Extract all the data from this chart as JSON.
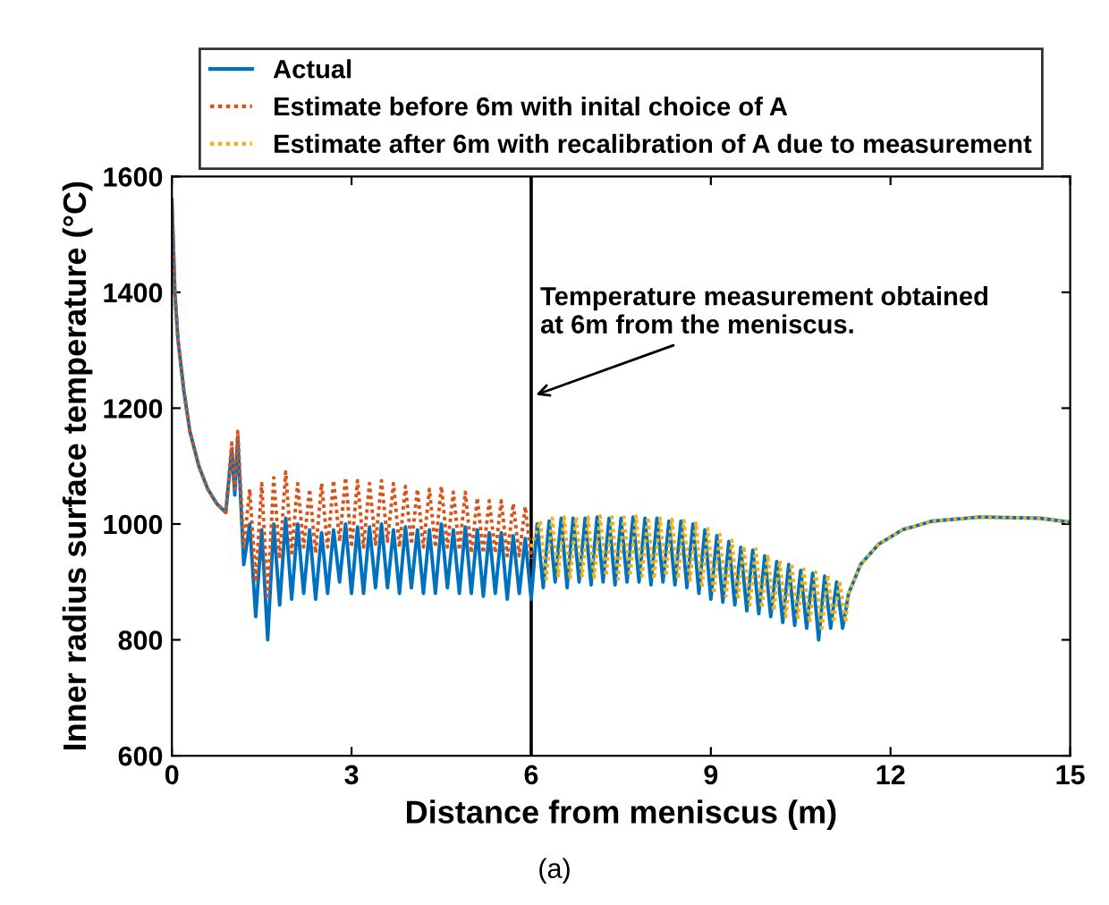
{
  "chart_data": {
    "type": "line",
    "xlabel": "Distance from meniscus (m)",
    "ylabel": "Inner radius surface temperature (°C)",
    "xlim": [
      0,
      15
    ],
    "ylim": [
      600,
      1600
    ],
    "xticks": [
      0,
      3,
      6,
      9,
      12,
      15
    ],
    "yticks": [
      600,
      800,
      1000,
      1200,
      1400,
      1600
    ],
    "legend": "top",
    "grid": false,
    "series": [
      {
        "name": "Actual",
        "color": "#0072bd",
        "line_style": "solid",
        "x": [
          0,
          0.05,
          0.1,
          0.2,
          0.3,
          0.45,
          0.6,
          0.75,
          0.9,
          1.0,
          1.05,
          1.1,
          1.2,
          1.3,
          1.4,
          1.5,
          1.6,
          1.7,
          1.8,
          1.9,
          2.0,
          2.1,
          2.2,
          2.3,
          2.4,
          2.5,
          2.6,
          2.7,
          2.8,
          2.9,
          3.0,
          3.1,
          3.2,
          3.3,
          3.4,
          3.5,
          3.6,
          3.7,
          3.8,
          3.9,
          4.0,
          4.1,
          4.2,
          4.3,
          4.4,
          4.5,
          4.6,
          4.7,
          4.8,
          4.9,
          5.0,
          5.1,
          5.2,
          5.3,
          5.4,
          5.5,
          5.6,
          5.7,
          5.8,
          5.9,
          6.0,
          6.1,
          6.2,
          6.3,
          6.4,
          6.5,
          6.6,
          6.7,
          6.8,
          6.9,
          7.0,
          7.1,
          7.2,
          7.3,
          7.4,
          7.5,
          7.6,
          7.7,
          7.8,
          7.9,
          8.0,
          8.1,
          8.2,
          8.3,
          8.4,
          8.5,
          8.6,
          8.7,
          8.8,
          8.9,
          9.0,
          9.1,
          9.2,
          9.3,
          9.4,
          9.5,
          9.6,
          9.7,
          9.8,
          9.9,
          10.0,
          10.1,
          10.2,
          10.3,
          10.4,
          10.5,
          10.6,
          10.7,
          10.8,
          10.9,
          11.0,
          11.1,
          11.2,
          11.3,
          11.5,
          11.8,
          12.2,
          12.7,
          13.5,
          14.5,
          15
        ],
        "values": [
          1560,
          1400,
          1320,
          1230,
          1160,
          1100,
          1060,
          1035,
          1020,
          1130,
          1050,
          1150,
          930,
          1000,
          840,
          990,
          800,
          1000,
          860,
          1010,
          870,
          1000,
          880,
          990,
          870,
          985,
          880,
          990,
          900,
          1000,
          880,
          995,
          880,
          995,
          890,
          1000,
          890,
          990,
          880,
          995,
          890,
          990,
          880,
          990,
          880,
          1000,
          890,
          990,
          880,
          995,
          880,
          990,
          875,
          985,
          880,
          985,
          870,
          980,
          880,
          975,
          870,
          1000,
          890,
          1005,
          900,
          1010,
          890,
          1010,
          900,
          1010,
          895,
          1012,
          900,
          1010,
          895,
          1010,
          900,
          1012,
          900,
          1010,
          895,
          1010,
          900,
          1005,
          895,
          1005,
          890,
          1000,
          880,
          990,
          870,
          980,
          865,
          970,
          860,
          960,
          850,
          955,
          845,
          945,
          840,
          935,
          830,
          930,
          825,
          920,
          820,
          915,
          800,
          910,
          820,
          900,
          820,
          880,
          930,
          965,
          990,
          1005,
          1012,
          1010,
          1003
        ]
      },
      {
        "name": "Estimate before 6m with inital choice of A",
        "color": "#d95319",
        "line_style": "dotted",
        "x": [
          0,
          0.05,
          0.1,
          0.2,
          0.3,
          0.45,
          0.6,
          0.75,
          0.9,
          1.0,
          1.05,
          1.1,
          1.2,
          1.3,
          1.4,
          1.5,
          1.6,
          1.7,
          1.8,
          1.9,
          2.0,
          2.1,
          2.2,
          2.3,
          2.4,
          2.5,
          2.6,
          2.7,
          2.8,
          2.9,
          3.0,
          3.1,
          3.2,
          3.3,
          3.4,
          3.5,
          3.6,
          3.7,
          3.8,
          3.9,
          4.0,
          4.1,
          4.2,
          4.3,
          4.4,
          4.5,
          4.6,
          4.7,
          4.8,
          4.9,
          5.0,
          5.1,
          5.2,
          5.3,
          5.4,
          5.5,
          5.6,
          5.7,
          5.8,
          5.9,
          6.0
        ],
        "values": [
          1560,
          1400,
          1320,
          1230,
          1160,
          1100,
          1060,
          1035,
          1020,
          1140,
          1060,
          1160,
          960,
          1060,
          900,
          1070,
          870,
          1080,
          940,
          1090,
          950,
          1070,
          960,
          1060,
          950,
          1070,
          960,
          1075,
          970,
          1080,
          960,
          1075,
          960,
          1070,
          965,
          1075,
          970,
          1070,
          960,
          1065,
          965,
          1060,
          960,
          1060,
          960,
          1065,
          960,
          1055,
          955,
          1055,
          950,
          1045,
          950,
          1040,
          950,
          1040,
          945,
          1035,
          945,
          1030,
          940
        ]
      },
      {
        "name": "Estimate after 6m with recalibration of A due to measurement",
        "color": "#edb120",
        "line_style": "dotted",
        "x": [
          6.0,
          6.15,
          6.25,
          6.35,
          6.45,
          6.55,
          6.65,
          6.75,
          6.85,
          6.95,
          7.05,
          7.15,
          7.25,
          7.35,
          7.45,
          7.55,
          7.65,
          7.75,
          7.85,
          7.95,
          8.05,
          8.15,
          8.25,
          8.35,
          8.45,
          8.55,
          8.65,
          8.75,
          8.85,
          8.95,
          9.05,
          9.15,
          9.25,
          9.35,
          9.45,
          9.55,
          9.65,
          9.75,
          9.85,
          9.95,
          10.05,
          10.15,
          10.25,
          10.35,
          10.45,
          10.55,
          10.65,
          10.75,
          10.85,
          10.95,
          11.05,
          11.15,
          11.25,
          11.3,
          11.5,
          11.8,
          12.2,
          12.7,
          13.5,
          14.5,
          15
        ],
        "values": [
          960,
          1005,
          905,
          1010,
          910,
          1012,
          905,
          1012,
          910,
          1012,
          905,
          1014,
          910,
          1012,
          905,
          1012,
          910,
          1014,
          910,
          1012,
          905,
          1010,
          910,
          1008,
          905,
          1006,
          900,
          1002,
          890,
          992,
          880,
          982,
          875,
          972,
          870,
          962,
          860,
          957,
          855,
          947,
          850,
          937,
          840,
          932,
          835,
          922,
          830,
          917,
          815,
          912,
          830,
          902,
          830,
          880,
          930,
          965,
          990,
          1005,
          1012,
          1010,
          1003
        ]
      }
    ],
    "ref_lines": [
      {
        "axis": "x",
        "value": 6,
        "color": "#000000",
        "line_style": "solid",
        "label": "Temperature measurement obtained\nat 6m from the meniscus."
      }
    ],
    "annotations": [
      "(a)"
    ]
  }
}
